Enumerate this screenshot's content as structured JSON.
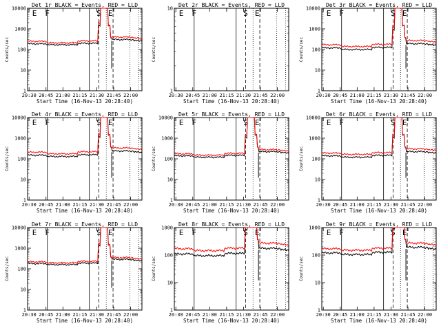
{
  "chart_data": [
    {
      "title": "Det 1r BLACK = Events, RED = LLD",
      "xlabel": "Start Time (16-Nov-13 20:28:40)",
      "ylabel": "Counts/sec",
      "xticks": [
        "20:30",
        "20:45",
        "21:00",
        "21:15",
        "21:30",
        "21:45",
        "22:00"
      ],
      "yticks": [
        "1",
        "10",
        "100",
        "1000",
        "10000"
      ],
      "ylim": [
        1,
        10000
      ],
      "events": [
        "E",
        "F",
        "S",
        "E"
      ],
      "empty": false,
      "series": [
        {
          "name": "Events",
          "color": "#000000",
          "base": 190,
          "sub_dip": 170
        },
        {
          "name": "LLD",
          "color": "#ff0000",
          "base": 250,
          "sub_dip": 210
        }
      ]
    },
    {
      "title": "Det 2r BLACK = Events, RED = LLD",
      "xlabel": "Start Time (16-Nov-13 20:28:40)",
      "ylabel": "Counts/sec",
      "xticks": [
        "20:30",
        "20:45",
        "21:00",
        "21:15",
        "21:30",
        "21:45",
        "22:00"
      ],
      "yticks": [
        "1",
        "10"
      ],
      "ylim": [
        1,
        10
      ],
      "events": [
        "E",
        "F",
        "S",
        "E"
      ],
      "empty": true,
      "series": []
    },
    {
      "title": "Det 3r BLACK = Events, RED = LLD",
      "xlabel": "Start Time (16-Nov-13 20:28:40)",
      "ylabel": "Counts/sec",
      "xticks": [
        "20:30",
        "20:45",
        "21:00",
        "21:15",
        "21:30",
        "21:45",
        "22:00"
      ],
      "yticks": [
        "1",
        "10",
        "100",
        "1000",
        "10000"
      ],
      "ylim": [
        1,
        10000
      ],
      "events": [
        "E",
        "F",
        "S",
        "E"
      ],
      "empty": false,
      "series": [
        {
          "name": "Events",
          "color": "#000000",
          "base": 120,
          "sub_dip": 100
        },
        {
          "name": "LLD",
          "color": "#ff0000",
          "base": 170,
          "sub_dip": 140
        }
      ]
    },
    {
      "title": "Det 4r BLACK = Events, RED = LLD",
      "xlabel": "Start Time (16-Nov-13 20:28:40)",
      "ylabel": "Counts/sec",
      "xticks": [
        "20:30",
        "20:45",
        "21:00",
        "21:15",
        "21:30",
        "21:45",
        "22:00"
      ],
      "yticks": [
        "1",
        "10",
        "100",
        "1000",
        "10000"
      ],
      "ylim": [
        1,
        10000
      ],
      "events": [
        "E",
        "F",
        "S",
        "E"
      ],
      "empty": false,
      "series": [
        {
          "name": "Events",
          "color": "#000000",
          "base": 150,
          "sub_dip": 130
        },
        {
          "name": "LLD",
          "color": "#ff0000",
          "base": 210,
          "sub_dip": 175
        }
      ]
    },
    {
      "title": "Det 5r BLACK = Events, RED = LLD",
      "xlabel": "Start Time (16-Nov-13 20:28:40)",
      "ylabel": "Counts/sec",
      "xticks": [
        "20:30",
        "20:45",
        "21:00",
        "21:15",
        "21:30",
        "21:45",
        "22:00"
      ],
      "yticks": [
        "1",
        "10",
        "100",
        "1000",
        "10000"
      ],
      "ylim": [
        1,
        10000
      ],
      "events": [
        "E",
        "F",
        "S",
        "E"
      ],
      "empty": false,
      "series": [
        {
          "name": "Events",
          "color": "#000000",
          "base": 140,
          "sub_dip": 120
        },
        {
          "name": "LLD",
          "color": "#ff0000",
          "base": 175,
          "sub_dip": 150
        }
      ]
    },
    {
      "title": "Det 6r BLACK = Events, RED = LLD",
      "xlabel": "Start Time (16-Nov-13 20:28:40)",
      "ylabel": "Counts/sec",
      "xticks": [
        "20:30",
        "20:45",
        "21:00",
        "21:15",
        "21:30",
        "21:45",
        "22:00"
      ],
      "yticks": [
        "1",
        "10",
        "100",
        "1000",
        "10000"
      ],
      "ylim": [
        1,
        10000
      ],
      "events": [
        "E",
        "F",
        "S",
        "E"
      ],
      "empty": false,
      "series": [
        {
          "name": "Events",
          "color": "#000000",
          "base": 140,
          "sub_dip": 120
        },
        {
          "name": "LLD",
          "color": "#ff0000",
          "base": 190,
          "sub_dip": 165
        }
      ]
    },
    {
      "title": "Det 7r BLACK = Events, RED = LLD",
      "xlabel": "Start Time (16-Nov-13 20:28:40)",
      "ylabel": "Counts/sec",
      "xticks": [
        "20:30",
        "20:45",
        "21:00",
        "21:15",
        "21:30",
        "21:45",
        "22:00"
      ],
      "yticks": [
        "1",
        "10",
        "100",
        "1000",
        "10000"
      ],
      "ylim": [
        1,
        10000
      ],
      "events": [
        "E",
        "F",
        "S",
        "E"
      ],
      "empty": false,
      "series": [
        {
          "name": "Events",
          "color": "#000000",
          "base": 180,
          "sub_dip": 160
        },
        {
          "name": "LLD",
          "color": "#ff0000",
          "base": 220,
          "sub_dip": 195
        }
      ]
    },
    {
      "title": "Det 8r BLACK = Events, RED = LLD",
      "xlabel": "Start Time (16-Nov-13 20:28:40)",
      "ylabel": "Counts/sec",
      "xticks": [
        "20:30",
        "20:45",
        "21:00",
        "21:15",
        "21:30",
        "21:45",
        "22:00"
      ],
      "yticks": [
        "1",
        "10",
        "100",
        "1000"
      ],
      "ylim": [
        1,
        1000
      ],
      "events": [
        "E",
        "F",
        "S",
        "E"
      ],
      "empty": false,
      "series": [
        {
          "name": "Events",
          "color": "#000000",
          "base": 110,
          "sub_dip": 95
        },
        {
          "name": "LLD",
          "color": "#ff0000",
          "base": 170,
          "sub_dip": 145
        }
      ]
    },
    {
      "title": "Det 9r BLACK = Events, RED = LLD",
      "xlabel": "Start Time (16-Nov-13 20:28:40)",
      "ylabel": "Counts/sec",
      "xticks": [
        "20:30",
        "20:45",
        "21:00",
        "21:15",
        "21:30",
        "21:45",
        "22:00"
      ],
      "yticks": [
        "1",
        "10",
        "100",
        "1000"
      ],
      "ylim": [
        1,
        1000
      ],
      "events": [
        "E",
        "F",
        "S",
        "E"
      ],
      "empty": false,
      "series": [
        {
          "name": "Events",
          "color": "#000000",
          "base": 120,
          "sub_dip": 105
        },
        {
          "name": "LLD",
          "color": "#ff0000",
          "base": 170,
          "sub_dip": 150
        }
      ]
    }
  ]
}
